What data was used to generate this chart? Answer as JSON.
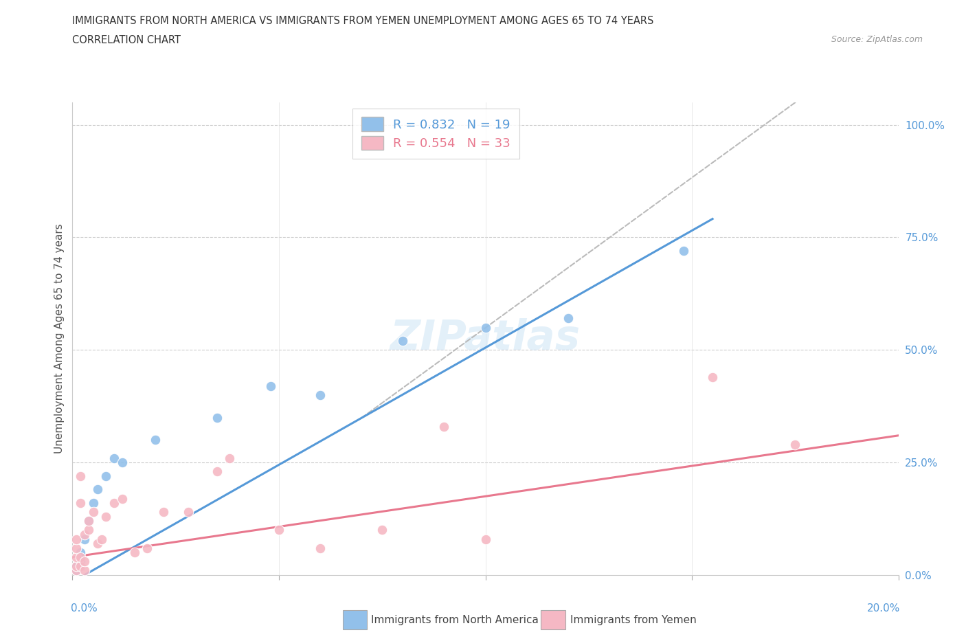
{
  "title_line1": "IMMIGRANTS FROM NORTH AMERICA VS IMMIGRANTS FROM YEMEN UNEMPLOYMENT AMONG AGES 65 TO 74 YEARS",
  "title_line2": "CORRELATION CHART",
  "source": "Source: ZipAtlas.com",
  "ylabel": "Unemployment Among Ages 65 to 74 years",
  "xlim": [
    0.0,
    0.2
  ],
  "ylim": [
    0.0,
    1.05
  ],
  "yticks_right": [
    0.0,
    0.25,
    0.5,
    0.75,
    1.0
  ],
  "yticklabels_right": [
    "0.0%",
    "25.0%",
    "50.0%",
    "75.0%",
    "100.0%"
  ],
  "north_america_color": "#92c0ea",
  "yemen_color": "#f5b8c4",
  "north_america_line_color": "#5599d8",
  "yemen_line_color": "#e8788e",
  "R_na": 0.832,
  "N_na": 19,
  "R_ye": 0.554,
  "N_ye": 33,
  "north_america_x": [
    0.001,
    0.001,
    0.002,
    0.002,
    0.003,
    0.004,
    0.005,
    0.006,
    0.008,
    0.01,
    0.012,
    0.02,
    0.035,
    0.048,
    0.06,
    0.08,
    0.1,
    0.12,
    0.148
  ],
  "north_america_y": [
    0.01,
    0.02,
    0.03,
    0.05,
    0.08,
    0.12,
    0.16,
    0.19,
    0.22,
    0.26,
    0.25,
    0.3,
    0.35,
    0.42,
    0.4,
    0.52,
    0.55,
    0.57,
    0.72
  ],
  "yemen_x": [
    0.001,
    0.001,
    0.001,
    0.001,
    0.001,
    0.002,
    0.002,
    0.002,
    0.002,
    0.003,
    0.003,
    0.003,
    0.004,
    0.004,
    0.005,
    0.006,
    0.007,
    0.008,
    0.01,
    0.012,
    0.015,
    0.018,
    0.022,
    0.028,
    0.035,
    0.038,
    0.05,
    0.06,
    0.075,
    0.09,
    0.1,
    0.155,
    0.175
  ],
  "yemen_y": [
    0.01,
    0.02,
    0.04,
    0.06,
    0.08,
    0.02,
    0.04,
    0.16,
    0.22,
    0.01,
    0.03,
    0.09,
    0.1,
    0.12,
    0.14,
    0.07,
    0.08,
    0.13,
    0.16,
    0.17,
    0.05,
    0.06,
    0.14,
    0.14,
    0.23,
    0.26,
    0.1,
    0.06,
    0.1,
    0.33,
    0.08,
    0.44,
    0.29
  ],
  "na_trend": [
    -0.015,
    5.2
  ],
  "ye_trend": [
    0.04,
    1.35
  ],
  "dash_line": [
    0.07,
    6.67
  ]
}
